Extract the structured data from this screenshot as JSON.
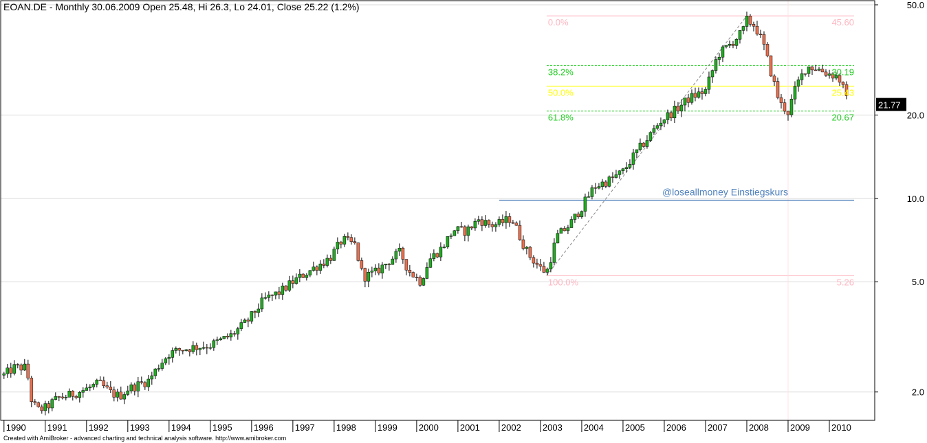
{
  "chart_data": {
    "type": "candlestick",
    "title": "EOAN.DE - Monthly 30.06.2009 Open 25.48, Hi 26.3, Lo 24.01, Close 25.22 (1.2%)",
    "footer": "Created with AmiBroker - advanced charting and technical analysis software. http://www.amibroker.com",
    "y_scale": "log",
    "ylim": [
      1.58,
      50.0
    ],
    "y_ticks": [
      "50.0",
      "20.0",
      "10.0",
      "5.0",
      "2.0"
    ],
    "y_tick_values": [
      50.0,
      20.0,
      10.0,
      5.0,
      2.0
    ],
    "x_ticks": [
      "1990",
      "1991",
      "1992",
      "1993",
      "1994",
      "1995",
      "1996",
      "1997",
      "1998",
      "1999",
      "2000",
      "2001",
      "2002",
      "2003",
      "2004",
      "2005",
      "2006",
      "2007",
      "2008",
      "2009",
      "2010"
    ],
    "last_price": "21.77",
    "last_price_value": 21.77,
    "fib_levels": [
      {
        "pct": "0.0%",
        "price": "45.60",
        "value": 45.6,
        "color": "#ffb6c1"
      },
      {
        "pct": "38.2%",
        "price": "30.19",
        "value": 30.19,
        "color": "#22cc22"
      },
      {
        "pct": "50.0%",
        "price": "25.43",
        "value": 25.43,
        "color": "#ffff00"
      },
      {
        "pct": "61.8%",
        "price": "20.67",
        "value": 20.67,
        "color": "#22cc22"
      },
      {
        "pct": "100.0%",
        "price": "5.26",
        "value": 5.26,
        "color": "#ffb6c1"
      }
    ],
    "annotation": {
      "text": "@loseallmoney Einstiegskurs",
      "value": 9.85,
      "from_x": 2002.0,
      "to_x": 2010.6
    },
    "trendline": {
      "from": [
        2003.15,
        5.26
      ],
      "to": [
        2008.0,
        45.6
      ]
    },
    "vline_x": 2009.0,
    "monthly_close_knots": [
      [
        1990.0,
        2.3
      ],
      [
        1990.25,
        2.45
      ],
      [
        1990.55,
        2.45
      ],
      [
        1990.65,
        1.9
      ],
      [
        1990.8,
        1.72
      ],
      [
        1991.0,
        1.75
      ],
      [
        1991.3,
        1.9
      ],
      [
        1991.6,
        1.95
      ],
      [
        1992.0,
        2.05
      ],
      [
        1992.3,
        2.15
      ],
      [
        1992.6,
        1.98
      ],
      [
        1992.8,
        1.93
      ],
      [
        1993.0,
        2.05
      ],
      [
        1993.5,
        2.2
      ],
      [
        1993.8,
        2.55
      ],
      [
        1994.0,
        2.75
      ],
      [
        1994.3,
        2.85
      ],
      [
        1994.6,
        2.9
      ],
      [
        1995.0,
        2.95
      ],
      [
        1995.5,
        3.2
      ],
      [
        1995.9,
        3.6
      ],
      [
        1996.3,
        4.3
      ],
      [
        1996.7,
        4.6
      ],
      [
        1997.0,
        5.0
      ],
      [
        1997.5,
        5.6
      ],
      [
        1997.9,
        6.1
      ],
      [
        1998.2,
        7.1
      ],
      [
        1998.5,
        6.8
      ],
      [
        1998.7,
        5.2
      ],
      [
        1999.0,
        5.4
      ],
      [
        1999.3,
        5.9
      ],
      [
        1999.6,
        6.4
      ],
      [
        1999.8,
        5.5
      ],
      [
        2000.1,
        5.0
      ],
      [
        2000.3,
        6.0
      ],
      [
        2000.6,
        6.6
      ],
      [
        2000.9,
        7.7
      ],
      [
        2001.2,
        7.6
      ],
      [
        2001.5,
        8.4
      ],
      [
        2001.8,
        8.0
      ],
      [
        2002.0,
        8.1
      ],
      [
        2002.3,
        8.5
      ],
      [
        2002.5,
        7.3
      ],
      [
        2002.7,
        6.3
      ],
      [
        2003.0,
        5.6
      ],
      [
        2003.15,
        5.4
      ],
      [
        2003.4,
        7.3
      ],
      [
        2003.7,
        8.0
      ],
      [
        2004.0,
        9.3
      ],
      [
        2004.3,
        11.0
      ],
      [
        2004.7,
        11.7
      ],
      [
        2005.0,
        12.5
      ],
      [
        2005.3,
        14.5
      ],
      [
        2005.6,
        16.5
      ],
      [
        2005.9,
        19.0
      ],
      [
        2006.3,
        21.0
      ],
      [
        2006.6,
        23.0
      ],
      [
        2007.0,
        24.5
      ],
      [
        2007.3,
        33.0
      ],
      [
        2007.6,
        36.0
      ],
      [
        2007.9,
        40.0
      ],
      [
        2008.0,
        44.0
      ],
      [
        2008.2,
        42.0
      ],
      [
        2008.4,
        36.0
      ],
      [
        2008.6,
        28.0
      ],
      [
        2008.8,
        22.0
      ],
      [
        2009.0,
        20.5
      ],
      [
        2009.2,
        25.5
      ],
      [
        2009.45,
        30.0
      ],
      [
        2009.7,
        29.5
      ],
      [
        2009.9,
        28.5
      ],
      [
        2010.2,
        27.5
      ],
      [
        2010.3,
        26.0
      ],
      [
        2010.45,
        21.8
      ]
    ],
    "grid": true,
    "legend": "none"
  },
  "colors": {
    "up": "#22aa22",
    "down": "#e8704f",
    "annotation": "#4f81bd",
    "grid": "#d9d9d9"
  }
}
